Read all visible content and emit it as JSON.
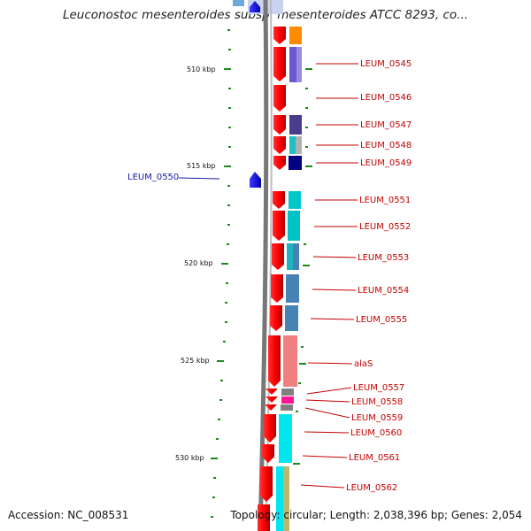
{
  "title": "Leuconostoc mesenteroides subsp. mesenteroides ATCC 8293, co...",
  "footer": {
    "accession": "Accession: NC_008531",
    "summary": "Topology: circular; Length: 2,038,396 bp; Genes: 2,054"
  },
  "ruler": [
    {
      "label": "510 kbp"
    },
    {
      "label": "515 kbp"
    },
    {
      "label": "520 kbp"
    },
    {
      "label": "525 kbp"
    },
    {
      "label": "530 kbp"
    }
  ],
  "genes": [
    {
      "label": "LEUM_0545"
    },
    {
      "label": "LEUM_0546"
    },
    {
      "label": "LEUM_0547"
    },
    {
      "label": "LEUM_0548"
    },
    {
      "label": "LEUM_0549"
    },
    {
      "label": "LEUM_0550"
    },
    {
      "label": "LEUM_0551"
    },
    {
      "label": "LEUM_0552"
    },
    {
      "label": "LEUM_0553"
    },
    {
      "label": "LEUM_0554"
    },
    {
      "label": "LEUM_0555"
    },
    {
      "label": "alaS"
    },
    {
      "label": "LEUM_0557"
    },
    {
      "label": "LEUM_0558"
    },
    {
      "label": "LEUM_0559"
    },
    {
      "label": "LEUM_0560"
    },
    {
      "label": "LEUM_0561"
    },
    {
      "label": "LEUM_0562"
    }
  ],
  "colors": {
    "forward_strand": "#ff0000",
    "reverse_strand": "#0000ff",
    "label_forward": "#c40000",
    "label_reverse": "#1a1aa0",
    "tick": "#1a8a1a"
  }
}
